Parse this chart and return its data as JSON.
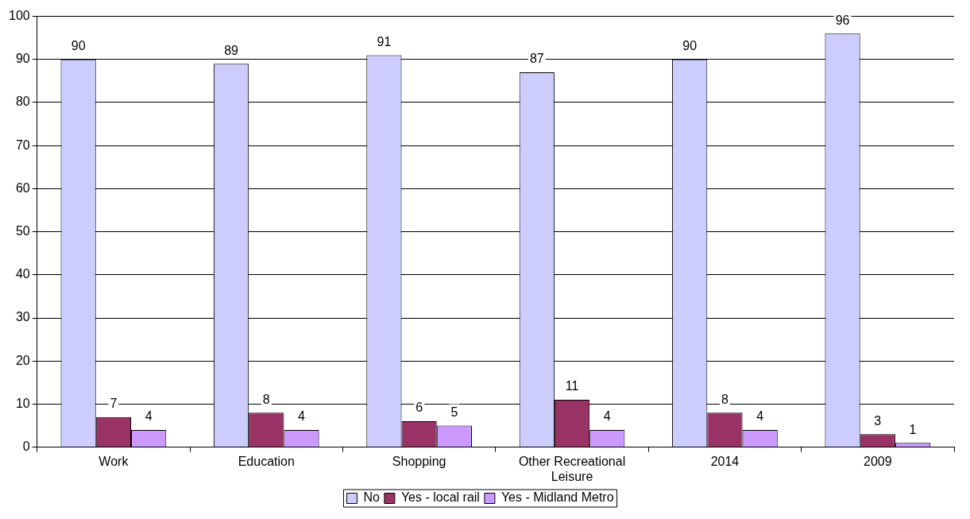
{
  "chart_data": {
    "type": "bar",
    "categories": [
      "Work",
      "Education",
      "Shopping",
      "Other Recreational Leisure",
      "2014",
      "2009"
    ],
    "series": [
      {
        "name": "No",
        "color": "#ccccff",
        "values": [
          90,
          89,
          91,
          87,
          90,
          96
        ]
      },
      {
        "name": "Yes - local rail",
        "color": "#993366",
        "values": [
          7,
          8,
          6,
          11,
          8,
          3
        ]
      },
      {
        "name": "Yes - Midland Metro",
        "color": "#cc99ff",
        "values": [
          4,
          4,
          5,
          4,
          4,
          1
        ]
      }
    ],
    "ylim": [
      0,
      100
    ],
    "yticks": [
      0,
      10,
      20,
      30,
      40,
      50,
      60,
      70,
      80,
      90,
      100
    ],
    "grid": "y",
    "legend": "bottom",
    "data_labels": true
  }
}
